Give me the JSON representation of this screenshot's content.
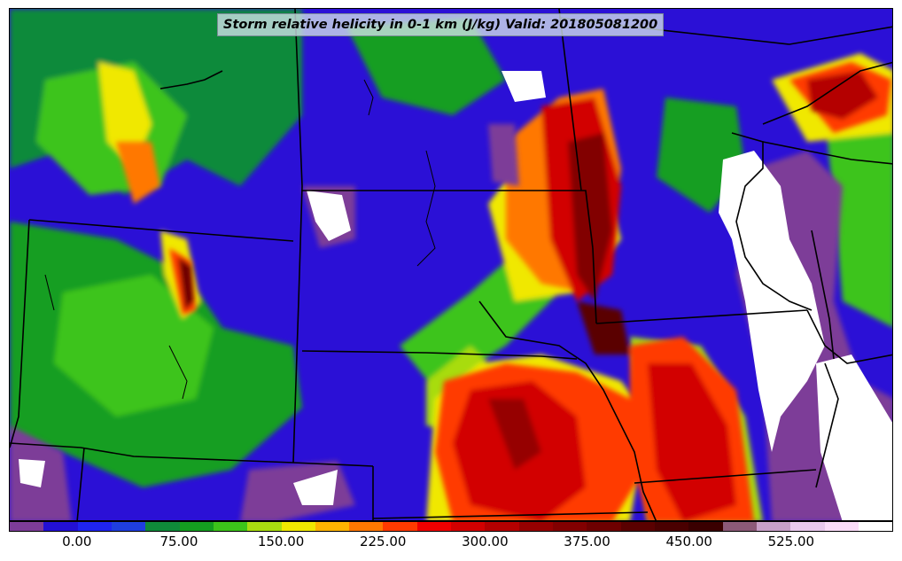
{
  "title": "Storm relative helicity in 0-1 km (J/kg) Valid: 201805081200",
  "colorbar": {
    "colors": [
      "#7d3c98",
      "#2310d4",
      "#1f24f0",
      "#1f3ee0",
      "#0f8a3a",
      "#149e20",
      "#3cc41a",
      "#a8dc10",
      "#f0e800",
      "#ffb400",
      "#ff7800",
      "#ff3a00",
      "#f00000",
      "#d20000",
      "#b40000",
      "#960000",
      "#820000",
      "#6e0000",
      "#5a0000",
      "#4a0000",
      "#3a0000",
      "#8c5a78",
      "#c8a0c8",
      "#e8c8ec",
      "#fadcf8",
      "#ffffff"
    ],
    "tick_labels": [
      "0.00",
      "75.00",
      "150.00",
      "225.00",
      "300.00",
      "375.00",
      "450.00",
      "525.00"
    ],
    "tick_positions": [
      2,
      5,
      8,
      11,
      14,
      17,
      20,
      23
    ]
  }
}
